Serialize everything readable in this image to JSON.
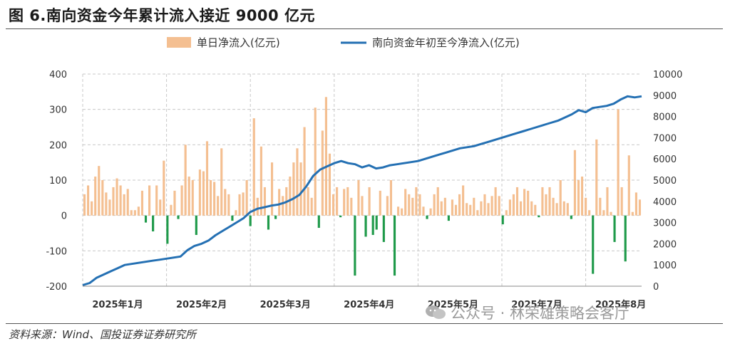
{
  "header": {
    "title": "图 6.南向资金今年累计流入接近 9000 亿元"
  },
  "footer": {
    "source": "资料来源：Wind、国投证券证券研究所"
  },
  "watermark": {
    "text": "公众号 · 林荣雄策略会客厅",
    "icon": "wechat-icon"
  },
  "chart_data": {
    "type": "bar+line",
    "title": "",
    "legend": {
      "placement": "top",
      "entries": [
        "单日净流入(亿元)",
        "南向资金年初至今净流入(亿元)"
      ]
    },
    "colors": {
      "bar_positive": "#f4bf91",
      "bar_negative": "#1f9a4a",
      "line": "#2470b3",
      "grid": "#c8c8c8"
    },
    "y_left": {
      "ylim": [
        -200,
        400
      ],
      "ticks": [
        "-200",
        "-100",
        "0",
        "100",
        "200",
        "300",
        "400"
      ]
    },
    "y_right": {
      "ylim": [
        0,
        10000
      ],
      "ticks": [
        "0",
        "1000",
        "2000",
        "3000",
        "4000",
        "5000",
        "6000",
        "7000",
        "8000",
        "9000",
        "10000"
      ]
    },
    "x_axis": {
      "range": [
        0,
        160
      ],
      "ticks": [
        {
          "label": "2025年1月",
          "pos": 10
        },
        {
          "label": "2025年2月",
          "pos": 34
        },
        {
          "label": "2025年3月",
          "pos": 58
        },
        {
          "label": "2025年4月",
          "pos": 82
        },
        {
          "label": "2025年5月",
          "pos": 106
        },
        {
          "label": "2025年7月",
          "pos": 130
        },
        {
          "label": "2025年8月",
          "pos": 154
        }
      ]
    },
    "series": [
      {
        "name": "单日净流入(亿元)",
        "kind": "bar",
        "axis": "left",
        "values": [
          60,
          85,
          40,
          110,
          140,
          100,
          65,
          45,
          80,
          105,
          85,
          60,
          75,
          15,
          15,
          25,
          70,
          -20,
          85,
          -45,
          85,
          45,
          155,
          -80,
          30,
          70,
          -10,
          85,
          200,
          110,
          100,
          -55,
          130,
          125,
          210,
          100,
          95,
          55,
          190,
          75,
          60,
          -15,
          15,
          60,
          65,
          100,
          -30,
          275,
          50,
          195,
          80,
          -40,
          150,
          -10,
          75,
          55,
          80,
          110,
          150,
          190,
          150,
          250,
          80,
          50,
          305,
          -35,
          240,
          335,
          175,
          60,
          80,
          -5,
          75,
          80,
          50,
          -170,
          100,
          55,
          -60,
          80,
          -55,
          -40,
          70,
          -75,
          55,
          100,
          -170,
          25,
          20,
          75,
          60,
          50,
          80,
          60,
          25,
          -10,
          20,
          60,
          80,
          40,
          50,
          -15,
          45,
          30,
          60,
          85,
          35,
          30,
          50,
          15,
          40,
          60,
          35,
          55,
          80,
          55,
          -25,
          15,
          45,
          60,
          80,
          40,
          75,
          70,
          40,
          30,
          -5,
          80,
          60,
          80,
          50,
          35,
          100,
          40,
          35,
          -10,
          185,
          100,
          110,
          50,
          15,
          -165,
          215,
          50,
          15,
          80,
          10,
          -75,
          300,
          80,
          -130,
          170,
          10,
          65,
          45
        ]
      },
      {
        "name": "南向资金年初至今净流入(亿元)",
        "kind": "line",
        "axis": "right",
        "x": [
          0,
          2,
          4,
          6,
          8,
          10,
          12,
          14,
          16,
          18,
          20,
          22,
          24,
          26,
          28,
          30,
          32,
          34,
          36,
          38,
          40,
          42,
          44,
          46,
          48,
          50,
          52,
          54,
          56,
          58,
          60,
          62,
          64,
          66,
          68,
          70,
          72,
          74,
          76,
          78,
          80,
          82,
          84,
          86,
          88,
          90,
          92,
          94,
          96,
          98,
          100,
          102,
          104,
          106,
          108,
          110,
          112,
          114,
          116,
          118,
          120,
          122,
          124,
          126,
          128,
          130,
          132,
          134,
          136,
          138,
          140,
          142,
          144,
          146,
          148,
          150,
          152,
          154,
          156,
          158,
          160
        ],
        "y": [
          50,
          150,
          400,
          550,
          700,
          850,
          1000,
          1050,
          1100,
          1150,
          1200,
          1250,
          1300,
          1350,
          1400,
          1700,
          1900,
          2000,
          2150,
          2400,
          2600,
          2800,
          3000,
          3200,
          3500,
          3650,
          3720,
          3800,
          3850,
          3950,
          4100,
          4300,
          4700,
          5200,
          5500,
          5650,
          5800,
          5900,
          5800,
          5750,
          5600,
          5700,
          5550,
          5600,
          5700,
          5750,
          5800,
          5850,
          5900,
          6000,
          6100,
          6200,
          6300,
          6400,
          6500,
          6550,
          6600,
          6700,
          6800,
          6900,
          7000,
          7100,
          7200,
          7300,
          7400,
          7500,
          7600,
          7700,
          7800,
          7950,
          8100,
          8300,
          8200,
          8400,
          8450,
          8500,
          8600,
          8800,
          8950,
          8900,
          8950
        ]
      }
    ]
  }
}
